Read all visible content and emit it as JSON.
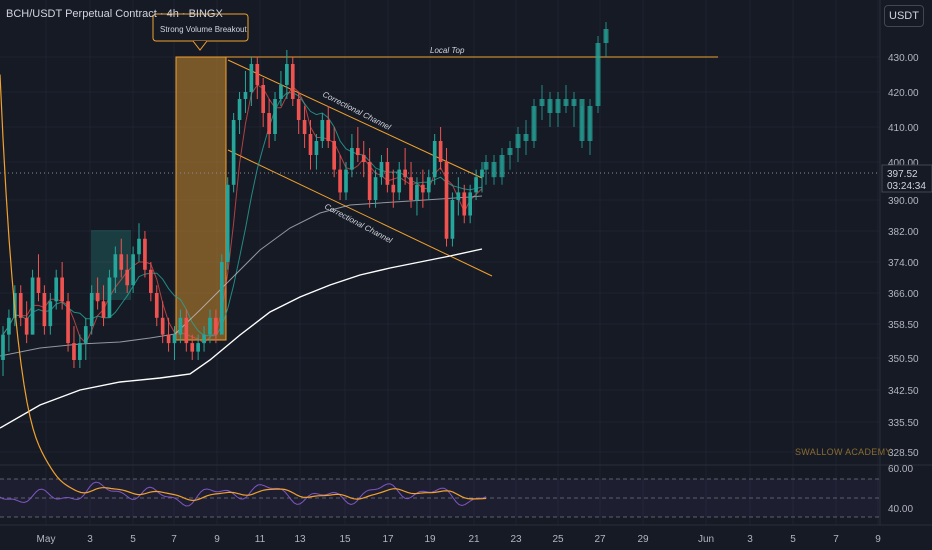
{
  "header": {
    "title": "BCH/USDT Perpetual Contract · 4h · BINGX"
  },
  "unit_button": "USDT",
  "watermark": "SWALLOW ACADEMY",
  "colors": {
    "background": "#161a25",
    "bull": "#26a69a",
    "bear": "#ef5350",
    "accent": "#f0a12e",
    "grid": "#232733",
    "text": "#b2b5be"
  },
  "chart_data": [
    {
      "type": "candlestick",
      "title": "BCH/USDT Perpetual Contract · 4h · BINGX",
      "y_ticks": [
        "430.00",
        "420.00",
        "410.00",
        "400.00",
        "390.00",
        "382.00",
        "374.00",
        "366.00",
        "358.50",
        "350.50",
        "342.50",
        "335.50",
        "328.50"
      ],
      "x_ticks": [
        "May",
        "3",
        "5",
        "7",
        "9",
        "11",
        "13",
        "15",
        "17",
        "19",
        "21",
        "23",
        "25",
        "27",
        "29",
        "Jun",
        "3",
        "5",
        "7",
        "9"
      ],
      "last_price": {
        "value": "397.52",
        "countdown": "03:24:34"
      },
      "annotations": {
        "callout": "Strong Volume Breakout",
        "local_top": {
          "label": "Local Top",
          "price": 430.0
        },
        "channel_upper": "Correctional Channel",
        "channel_lower": "Correctional Channel"
      },
      "ohlc": [
        [
          350,
          358,
          346,
          356
        ],
        [
          356,
          362,
          352,
          360
        ],
        [
          360,
          368,
          358,
          366
        ],
        [
          366,
          368,
          358,
          360
        ],
        [
          360,
          364,
          354,
          356
        ],
        [
          356,
          372,
          356,
          370
        ],
        [
          370,
          376,
          364,
          366
        ],
        [
          366,
          368,
          356,
          358
        ],
        [
          358,
          366,
          356,
          364
        ],
        [
          364,
          372,
          362,
          370
        ],
        [
          370,
          374,
          362,
          364
        ],
        [
          364,
          366,
          352,
          354
        ],
        [
          354,
          358,
          348,
          350
        ],
        [
          350,
          356,
          348,
          354
        ],
        [
          354,
          360,
          350,
          358
        ],
        [
          358,
          368,
          356,
          366
        ],
        [
          366,
          370,
          362,
          364
        ],
        [
          364,
          368,
          358,
          360
        ],
        [
          360,
          372,
          360,
          370
        ],
        [
          370,
          378,
          366,
          376
        ],
        [
          376,
          380,
          370,
          372
        ],
        [
          372,
          376,
          366,
          368
        ],
        [
          368,
          378,
          366,
          376
        ],
        [
          376,
          384,
          374,
          380
        ],
        [
          380,
          382,
          370,
          372
        ],
        [
          372,
          374,
          364,
          366
        ],
        [
          366,
          368,
          358,
          360
        ],
        [
          360,
          364,
          354,
          356
        ],
        [
          356,
          360,
          352,
          354
        ],
        [
          354,
          358,
          350,
          356
        ],
        [
          356,
          362,
          354,
          360
        ],
        [
          360,
          362,
          352,
          354
        ],
        [
          354,
          356,
          350,
          352
        ],
        [
          352,
          356,
          350,
          354
        ],
        [
          354,
          358,
          352,
          356
        ],
        [
          356,
          362,
          354,
          360
        ],
        [
          360,
          362,
          354,
          356
        ],
        [
          356,
          376,
          356,
          374
        ],
        [
          374,
          396,
          372,
          394
        ],
        [
          394,
          414,
          392,
          412
        ],
        [
          412,
          420,
          408,
          418
        ],
        [
          418,
          426,
          414,
          420
        ],
        [
          420,
          430,
          416,
          428
        ],
        [
          428,
          430,
          418,
          422
        ],
        [
          422,
          424,
          410,
          414
        ],
        [
          414,
          418,
          404,
          408
        ],
        [
          408,
          420,
          406,
          418
        ],
        [
          418,
          426,
          416,
          422
        ],
        [
          422,
          432,
          418,
          428
        ],
        [
          428,
          430,
          416,
          418
        ],
        [
          418,
          420,
          408,
          412
        ],
        [
          412,
          416,
          404,
          408
        ],
        [
          408,
          412,
          398,
          402
        ],
        [
          402,
          408,
          398,
          406
        ],
        [
          406,
          414,
          404,
          412
        ],
        [
          412,
          416,
          404,
          406
        ],
        [
          406,
          410,
          396,
          398
        ],
        [
          398,
          402,
          390,
          392
        ],
        [
          392,
          400,
          390,
          398
        ],
        [
          398,
          408,
          396,
          404
        ],
        [
          404,
          410,
          400,
          402
        ],
        [
          402,
          406,
          396,
          400
        ],
        [
          400,
          404,
          388,
          390
        ],
        [
          390,
          398,
          388,
          396
        ],
        [
          396,
          402,
          394,
          400
        ],
        [
          400,
          404,
          392,
          394
        ],
        [
          394,
          398,
          388,
          392
        ],
        [
          392,
          400,
          390,
          398
        ],
        [
          398,
          404,
          394,
          396
        ],
        [
          396,
          400,
          388,
          390
        ],
        [
          390,
          396,
          386,
          394
        ],
        [
          394,
          398,
          388,
          392
        ],
        [
          392,
          398,
          390,
          396
        ],
        [
          396,
          408,
          394,
          406
        ],
        [
          406,
          410,
          398,
          400
        ],
        [
          400,
          404,
          378,
          380
        ],
        [
          380,
          392,
          378,
          390
        ],
        [
          390,
          396,
          386,
          392
        ],
        [
          392,
          394,
          384,
          386
        ],
        [
          386,
          394,
          384,
          392
        ],
        [
          392,
          398,
          390,
          396
        ],
        [
          396,
          400,
          392,
          398
        ]
      ],
      "projection": [
        [
          398,
          402,
          394,
          400
        ],
        [
          400,
          402,
          394,
          396
        ],
        [
          396,
          404,
          394,
          402
        ],
        [
          402,
          406,
          398,
          404
        ],
        [
          404,
          410,
          400,
          408
        ],
        [
          408,
          412,
          402,
          406
        ],
        [
          406,
          418,
          404,
          416
        ],
        [
          416,
          422,
          412,
          418
        ],
        [
          418,
          420,
          410,
          414
        ],
        [
          414,
          420,
          410,
          418
        ],
        [
          418,
          422,
          414,
          416
        ],
        [
          416,
          420,
          410,
          418
        ],
        [
          418,
          416,
          404,
          406
        ],
        [
          406,
          418,
          402,
          416
        ],
        [
          416,
          436,
          414,
          434
        ],
        [
          434,
          440,
          430,
          438
        ]
      ]
    },
    {
      "type": "line",
      "title": "RSI",
      "y_ticks": [
        "60.00",
        "40.00"
      ]
    }
  ]
}
